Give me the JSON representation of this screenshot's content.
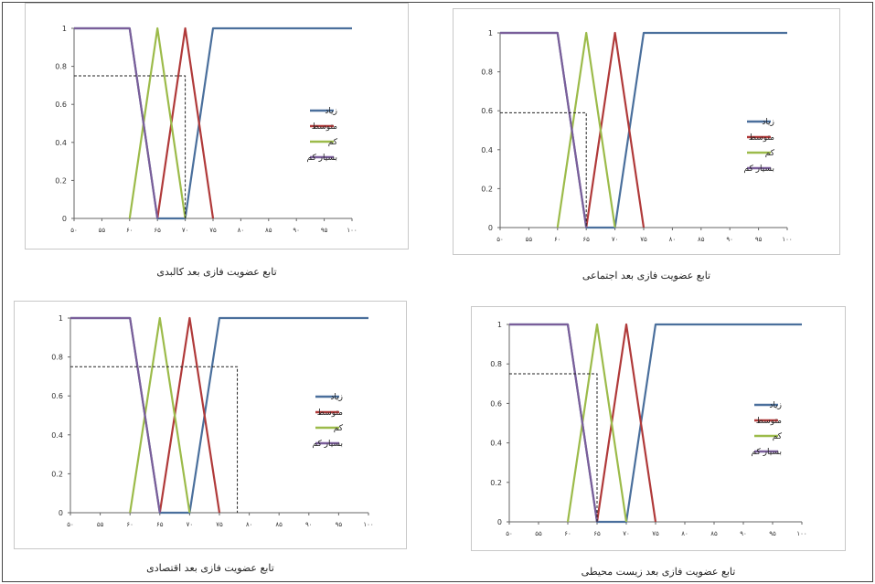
{
  "colors": {
    "ziad": "#4a6f9c",
    "motavaset": "#b03a3a",
    "kam": "#9cbb4a",
    "besyar_kam": "#7a5e9a",
    "dashed": "#222222",
    "frame": "#c8c8c8"
  },
  "chart_data": [
    {
      "type": "line",
      "caption": "تابع عضویت فازی بعد کالبدی",
      "x_ticks": [
        "۵۰",
        "۵۵",
        "۶۰",
        "۶۵",
        "۷۰",
        "۷۵",
        "۸۰",
        "۸۵",
        "۹۰",
        "۹۵",
        "۱۰۰"
      ],
      "y_ticks": [
        "0",
        "0.2",
        "0.4",
        "0.6",
        "0.8",
        "1"
      ],
      "xlim": [
        50,
        100
      ],
      "ylim": [
        0,
        1
      ],
      "legend_position": "right",
      "series": [
        {
          "name": "زیاد",
          "color_key": "ziad",
          "x": [
            50,
            60,
            65,
            70,
            75,
            100
          ],
          "y": [
            1,
            1,
            0,
            0,
            1,
            1
          ]
        },
        {
          "name": "متوسط",
          "color_key": "motavaset",
          "x": [
            65,
            70,
            75
          ],
          "y": [
            0,
            1,
            0
          ]
        },
        {
          "name": "کم",
          "color_key": "kam",
          "x": [
            60,
            65,
            70
          ],
          "y": [
            0,
            1,
            0
          ]
        },
        {
          "name": "بسیار کم",
          "color_key": "besyar_kam",
          "x": [
            50,
            60,
            65
          ],
          "y": [
            1,
            1,
            0
          ]
        }
      ],
      "marker": {
        "x": 70,
        "y": 0.75
      }
    },
    {
      "type": "line",
      "caption": "تابع عضویت فازی بعد اجتماعی",
      "x_ticks": [
        "۵۰",
        "۵۵",
        "۶۰",
        "۶۵",
        "۷۰",
        "۷۵",
        "۸۰",
        "۸۵",
        "۹۰",
        "۹۵",
        "۱۰۰"
      ],
      "y_ticks": [
        "0",
        "0.2",
        "0.4",
        "0.6",
        "0.8",
        "1"
      ],
      "xlim": [
        50,
        100
      ],
      "ylim": [
        0,
        1
      ],
      "legend_position": "right",
      "series": [
        {
          "name": "زیاد",
          "color_key": "ziad",
          "x": [
            50,
            60,
            65,
            70,
            75,
            100
          ],
          "y": [
            1,
            1,
            0,
            0,
            1,
            1
          ]
        },
        {
          "name": "متوسط",
          "color_key": "motavaset",
          "x": [
            65,
            70,
            75
          ],
          "y": [
            0,
            1,
            0
          ]
        },
        {
          "name": "کم",
          "color_key": "kam",
          "x": [
            60,
            65,
            70
          ],
          "y": [
            0,
            1,
            0
          ]
        },
        {
          "name": "بسیار کم",
          "color_key": "besyar_kam",
          "x": [
            50,
            60,
            65
          ],
          "y": [
            1,
            1,
            0
          ]
        }
      ],
      "marker": {
        "x": 65,
        "y": 0.59
      }
    },
    {
      "type": "line",
      "caption": "تابع عضویت فازی بعد اقتصادی",
      "x_ticks": [
        "۵۰",
        "۵۵",
        "۶۰",
        "۶۵",
        "۷۰",
        "۷۵",
        "۸۰",
        "۸۵",
        "۹۰",
        "۹۵",
        "۱۰۰"
      ],
      "y_ticks": [
        "0",
        "0.2",
        "0.4",
        "0.6",
        "0.8",
        "1"
      ],
      "xlim": [
        50,
        100
      ],
      "ylim": [
        0,
        1
      ],
      "legend_position": "right",
      "series": [
        {
          "name": "زیاد",
          "color_key": "ziad",
          "x": [
            50,
            60,
            65,
            70,
            75,
            100
          ],
          "y": [
            1,
            1,
            0,
            0,
            1,
            1
          ]
        },
        {
          "name": "متوسط",
          "color_key": "motavaset",
          "x": [
            65,
            70,
            75
          ],
          "y": [
            0,
            1,
            0
          ]
        },
        {
          "name": "کم",
          "color_key": "kam",
          "x": [
            60,
            65,
            70
          ],
          "y": [
            0,
            1,
            0
          ]
        },
        {
          "name": "بسیار کم",
          "color_key": "besyar_kam",
          "x": [
            50,
            60,
            65
          ],
          "y": [
            1,
            1,
            0
          ]
        }
      ],
      "marker": {
        "x": 78,
        "y": 0.75
      }
    },
    {
      "type": "line",
      "caption": "تابع عضویت فازی بعد زیست محیطی",
      "x_ticks": [
        "۵۰",
        "۵۵",
        "۶۰",
        "۶۵",
        "۷۰",
        "۷۵",
        "۸۰",
        "۸۵",
        "۹۰",
        "۹۵",
        "۱۰۰"
      ],
      "y_ticks": [
        "0",
        "0.2",
        "0.4",
        "0.6",
        "0.8",
        "1"
      ],
      "xlim": [
        50,
        100
      ],
      "ylim": [
        0,
        1
      ],
      "legend_position": "right",
      "series": [
        {
          "name": "زیاد",
          "color_key": "ziad",
          "x": [
            50,
            60,
            65,
            70,
            75,
            100
          ],
          "y": [
            1,
            1,
            0,
            0,
            1,
            1
          ]
        },
        {
          "name": "متوسط",
          "color_key": "motavaset",
          "x": [
            65,
            70,
            75
          ],
          "y": [
            0,
            1,
            0
          ]
        },
        {
          "name": "کم",
          "color_key": "kam",
          "x": [
            60,
            65,
            70
          ],
          "y": [
            0,
            1,
            0
          ]
        },
        {
          "name": "بسیار کم",
          "color_key": "besyar_kam",
          "x": [
            50,
            60,
            65
          ],
          "y": [
            1,
            1,
            0
          ]
        }
      ],
      "marker": {
        "x": 65,
        "y": 0.75
      }
    }
  ]
}
